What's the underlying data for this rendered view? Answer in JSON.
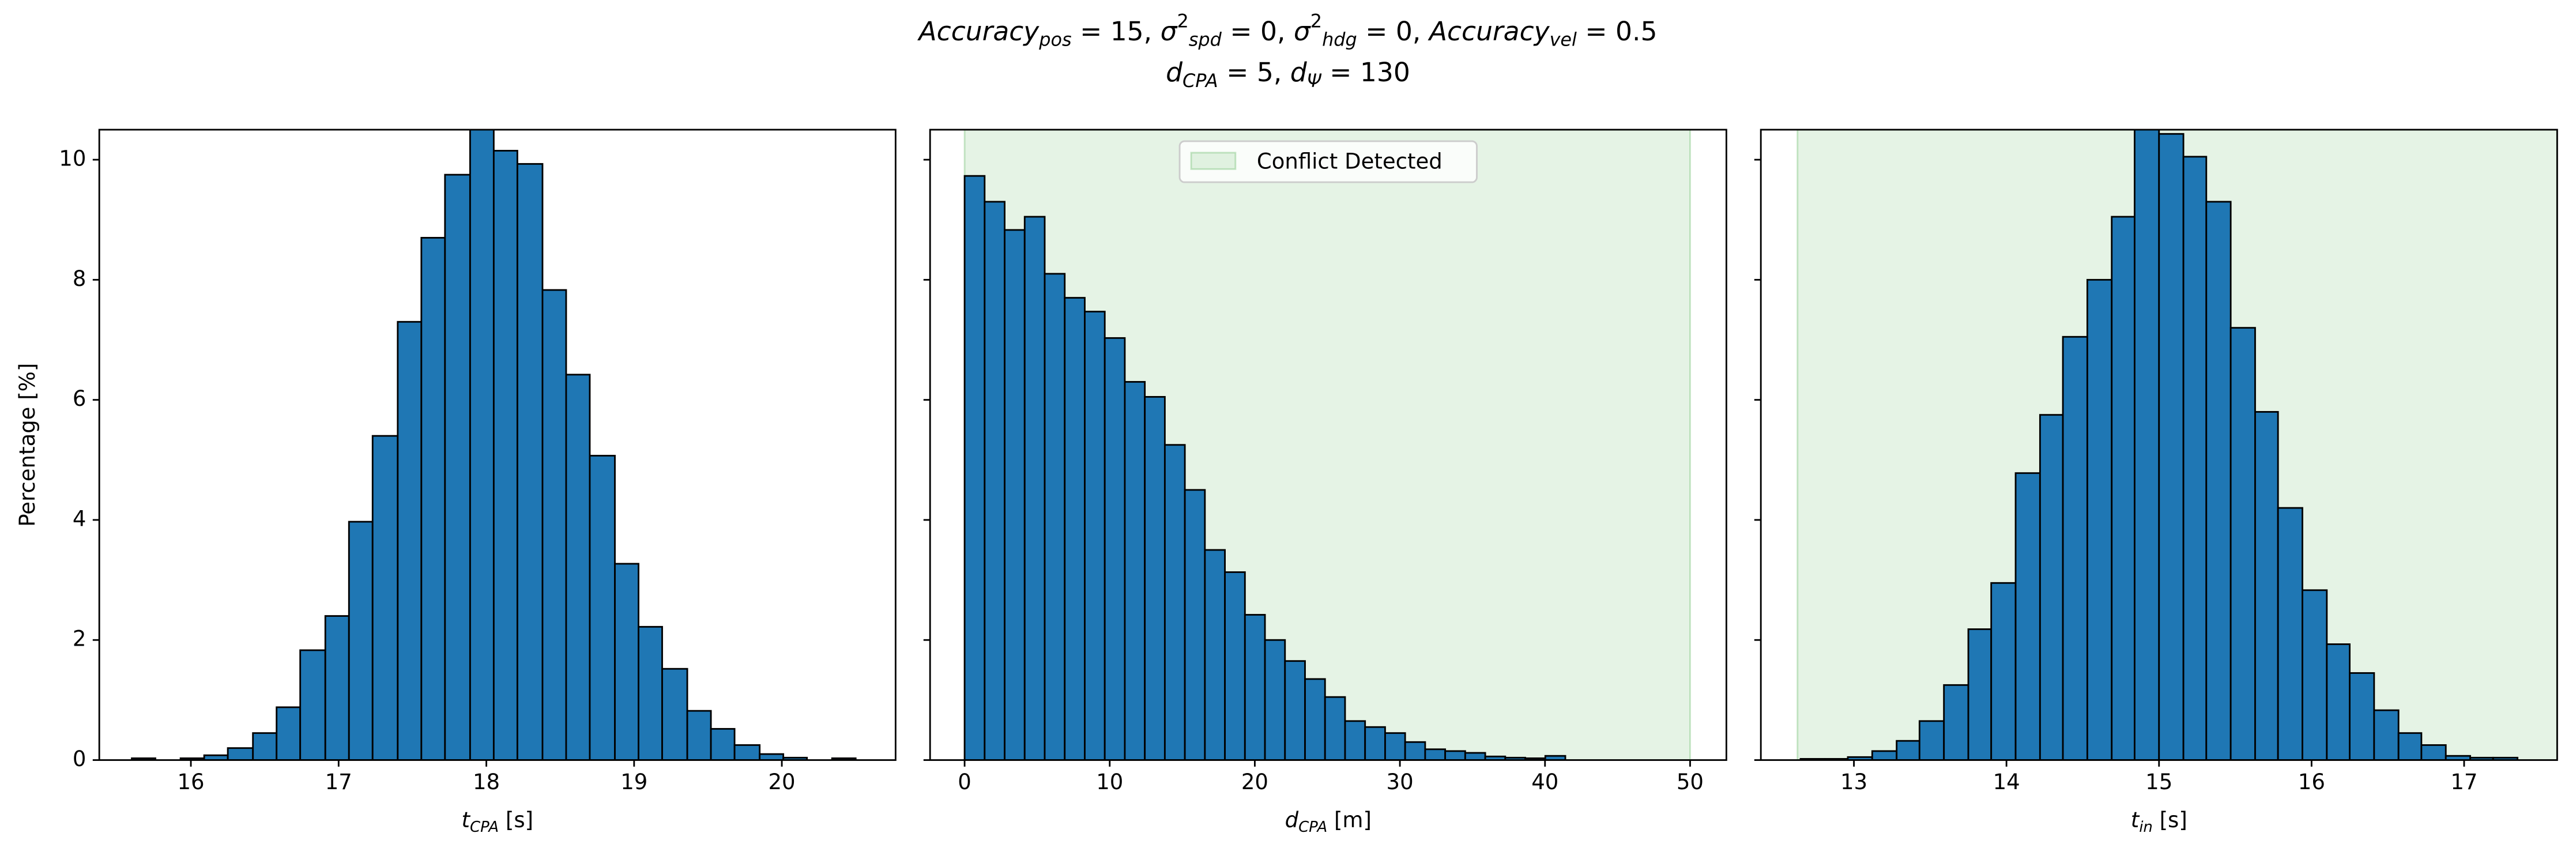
{
  "title": [
    [
      {
        "text": "Accuracy",
        "sub": "pos"
      },
      {
        "text": " = 15, "
      },
      {
        "text": "σ",
        "sup": "2",
        "sub": "spd"
      },
      {
        "text": " = 0, "
      },
      {
        "text": "σ",
        "sup": "2",
        "sub": "hdg"
      },
      {
        "text": " = 0, "
      },
      {
        "text": "Accuracy",
        "sub": "vel"
      },
      {
        "text": " = 0.5"
      }
    ],
    [
      {
        "text": "d",
        "sub": "CPA"
      },
      {
        "text": " = 5, "
      },
      {
        "text": "d",
        "sub": "Ψ"
      },
      {
        "text": " = 130"
      }
    ]
  ],
  "chart_data": [
    {
      "type": "histogram",
      "color": "#1f77b4",
      "xlabel": [
        {
          "text": "t",
          "sub": "CPA"
        },
        {
          "text": " [s]"
        }
      ],
      "ylabel": "Percentage [%]",
      "bins": [
        15.6,
        15.76,
        15.93,
        16.09,
        16.25,
        16.42,
        16.58,
        16.74,
        16.91,
        17.07,
        17.23,
        17.4,
        17.56,
        17.72,
        17.89,
        18.05,
        18.21,
        18.38,
        18.54,
        18.7,
        18.87,
        19.03,
        19.19,
        19.36,
        19.52,
        19.68,
        19.85,
        20.01,
        20.17,
        20.34,
        20.5
      ],
      "values": [
        0.03,
        0,
        0.03,
        0.08,
        0.2,
        0.45,
        0.88,
        1.83,
        2.4,
        3.97,
        5.4,
        7.3,
        8.7,
        9.75,
        10.6,
        10.15,
        9.93,
        7.83,
        6.42,
        5.07,
        3.27,
        2.22,
        1.52,
        0.82,
        0.52,
        0.25,
        0.1,
        0.04,
        0,
        0.03
      ],
      "xlim": [
        15.38,
        20.77
      ],
      "xticks": [
        16,
        17,
        18,
        19,
        20
      ],
      "ylim": [
        0,
        10.5
      ],
      "yticks": [
        0,
        2,
        4,
        6,
        8,
        10
      ],
      "ytick_labels": true
    },
    {
      "type": "histogram",
      "color": "#1f77b4",
      "xlabel": [
        {
          "text": "d",
          "sub": "CPA"
        },
        {
          "text": " [m]"
        }
      ],
      "span": [
        0,
        50
      ],
      "span_color": "#2ca02c",
      "legend": {
        "label": "Conflict Detected",
        "loc": "upper center"
      },
      "bins": [
        0,
        1.38,
        2.76,
        4.14,
        5.52,
        6.9,
        8.28,
        9.66,
        11.04,
        12.42,
        13.8,
        15.18,
        16.56,
        17.94,
        19.32,
        20.7,
        22.08,
        23.46,
        24.84,
        26.22,
        27.6,
        28.98,
        30.36,
        31.74,
        33.12,
        34.5,
        35.88,
        37.26,
        38.64,
        40.02,
        41.4
      ],
      "values": [
        9.73,
        9.3,
        8.83,
        9.05,
        8.1,
        7.7,
        7.47,
        7.03,
        6.3,
        6.05,
        5.25,
        4.5,
        3.5,
        3.13,
        2.42,
        2.0,
        1.65,
        1.35,
        1.05,
        0.65,
        0.55,
        0.45,
        0.3,
        0.18,
        0.15,
        0.12,
        0.06,
        0.04,
        0.03,
        0.07
      ],
      "xlim": [
        -2.38,
        52.5
      ],
      "xticks": [
        0,
        10,
        20,
        30,
        40,
        50
      ],
      "ylim": [
        0,
        10.5
      ],
      "yticks": [
        0,
        2,
        4,
        6,
        8,
        10
      ],
      "ytick_labels": false
    },
    {
      "type": "histogram",
      "color": "#1f77b4",
      "xlabel": [
        {
          "text": "t",
          "sub": "in"
        },
        {
          "text": " [s]"
        }
      ],
      "span": [
        12.63,
        18
      ],
      "span_color": "#2ca02c",
      "bins": [
        12.65,
        12.81,
        12.96,
        13.12,
        13.28,
        13.43,
        13.59,
        13.75,
        13.9,
        14.06,
        14.22,
        14.37,
        14.53,
        14.69,
        14.84,
        15.0,
        15.16,
        15.31,
        15.47,
        15.63,
        15.78,
        15.94,
        16.1,
        16.25,
        16.41,
        16.57,
        16.72,
        16.88,
        17.04,
        17.19,
        17.35
      ],
      "values": [
        0.02,
        0.02,
        0.05,
        0.15,
        0.32,
        0.65,
        1.25,
        2.18,
        2.95,
        4.78,
        5.75,
        7.05,
        8.0,
        9.05,
        10.55,
        10.43,
        10.05,
        9.3,
        7.2,
        5.8,
        4.2,
        2.83,
        1.93,
        1.45,
        0.83,
        0.45,
        0.25,
        0.07,
        0.04,
        0.04
      ],
      "xlim": [
        12.39,
        17.61
      ],
      "xticks": [
        13,
        14,
        15,
        16,
        17
      ],
      "ylim": [
        0,
        10.5
      ],
      "yticks": [
        0,
        2,
        4,
        6,
        8,
        10
      ],
      "ytick_labels": false
    }
  ]
}
